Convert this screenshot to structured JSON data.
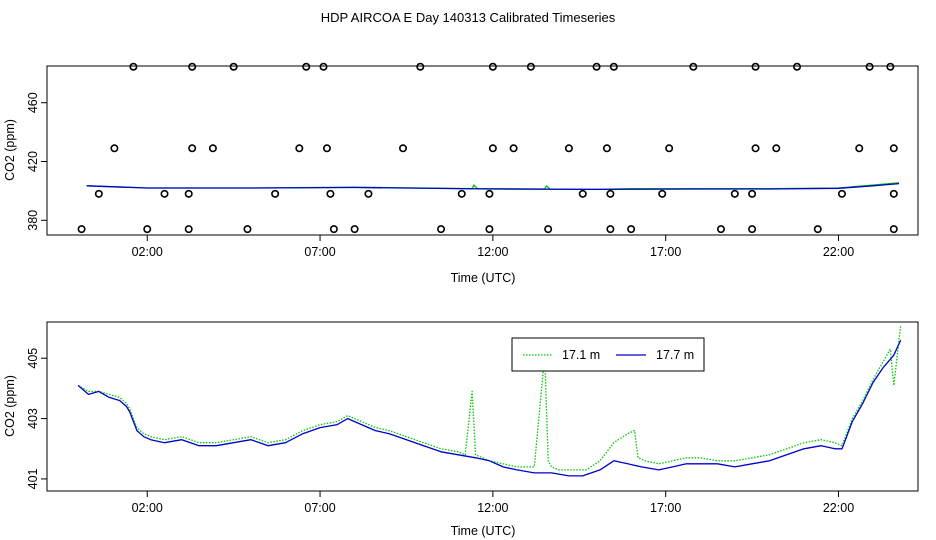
{
  "figure_title": "HDP AIRCOA E  Day 140313  Calibrated Timeseries",
  "colors": {
    "green": "#00c800",
    "blue": "#0000cc",
    "axis": "#000000"
  },
  "chart_data": [
    {
      "type": "line",
      "panel": "top",
      "xlabel": "Time (UTC)",
      "ylabel": "CO2 (ppm)",
      "xlim_hours": [
        0,
        24
      ],
      "ylim": [
        370,
        485
      ],
      "x_ticks": [
        {
          "hour": 2,
          "label": "02:00"
        },
        {
          "hour": 7,
          "label": "07:00"
        },
        {
          "hour": 12,
          "label": "12:00"
        },
        {
          "hour": 17,
          "label": "17:00"
        },
        {
          "hour": 22,
          "label": "22:00"
        }
      ],
      "y_ticks": [
        380,
        420,
        460
      ],
      "series": [
        {
          "color": "green",
          "hours": [
            0.25,
            2,
            5,
            8,
            11.4,
            11.45,
            11.55,
            12,
            13.5,
            13.55,
            13.65,
            15,
            16,
            18,
            20,
            22,
            23,
            23.75
          ],
          "values": [
            403.5,
            402,
            402,
            402.5,
            401.5,
            404,
            401.5,
            401.5,
            401.3,
            403.5,
            401.3,
            401,
            401.5,
            401.5,
            401.5,
            402,
            404,
            405.5
          ]
        },
        {
          "color": "blue",
          "hours": [
            0.25,
            2,
            5,
            8,
            12,
            15,
            18,
            20,
            22,
            23,
            23.75
          ],
          "values": [
            403.5,
            402,
            402,
            402.3,
            401.3,
            401,
            401.3,
            401.3,
            401.8,
            403.5,
            405
          ]
        }
      ],
      "markers": {
        "shape": "open-circle",
        "points": [
          [
            1.6,
            484.5
          ],
          [
            3.3,
            484.5
          ],
          [
            4.5,
            484.5
          ],
          [
            6.6,
            484.5
          ],
          [
            7.1,
            484.5
          ],
          [
            9.9,
            484.5
          ],
          [
            12,
            484.5
          ],
          [
            13.1,
            484.5
          ],
          [
            15,
            484.5
          ],
          [
            15.5,
            484.5
          ],
          [
            17.8,
            484.5
          ],
          [
            19.6,
            484.5
          ],
          [
            20.8,
            484.5
          ],
          [
            22.9,
            484.5
          ],
          [
            23.5,
            484.5
          ],
          [
            1.05,
            429
          ],
          [
            3.3,
            429
          ],
          [
            3.9,
            429
          ],
          [
            6.4,
            429
          ],
          [
            7.2,
            429
          ],
          [
            9.4,
            429
          ],
          [
            12,
            429
          ],
          [
            12.6,
            429
          ],
          [
            14.2,
            429
          ],
          [
            15.3,
            429
          ],
          [
            17.1,
            429
          ],
          [
            19.6,
            429
          ],
          [
            20.2,
            429
          ],
          [
            22.6,
            429
          ],
          [
            23.6,
            429
          ],
          [
            0.6,
            398
          ],
          [
            2.5,
            398
          ],
          [
            3.2,
            398
          ],
          [
            5.7,
            398
          ],
          [
            7.3,
            398
          ],
          [
            8.4,
            398
          ],
          [
            11.1,
            398
          ],
          [
            11.9,
            398
          ],
          [
            14.6,
            398
          ],
          [
            15.4,
            398
          ],
          [
            16.9,
            398
          ],
          [
            19,
            398
          ],
          [
            19.5,
            398
          ],
          [
            22.1,
            398
          ],
          [
            23.6,
            398
          ],
          [
            0.1,
            374
          ],
          [
            2,
            374
          ],
          [
            3.2,
            374
          ],
          [
            4.9,
            374
          ],
          [
            7.4,
            374
          ],
          [
            8,
            374
          ],
          [
            10.5,
            374
          ],
          [
            11.9,
            374
          ],
          [
            13.6,
            374
          ],
          [
            15.4,
            374
          ],
          [
            16,
            374
          ],
          [
            18.6,
            374
          ],
          [
            19.5,
            374
          ],
          [
            21.4,
            374
          ],
          [
            23.6,
            374
          ]
        ]
      }
    },
    {
      "type": "line",
      "panel": "bottom",
      "xlabel": "Time (UTC)",
      "ylabel": "CO2 (ppm)",
      "xlim_hours": [
        -0.9,
        24.3
      ],
      "ylim": [
        400.6,
        406.2
      ],
      "x_ticks": [
        {
          "hour": 2,
          "label": "02:00"
        },
        {
          "hour": 7,
          "label": "07:00"
        },
        {
          "hour": 12,
          "label": "12:00"
        },
        {
          "hour": 17,
          "label": "17:00"
        },
        {
          "hour": 22,
          "label": "22:00"
        }
      ],
      "y_ticks": [
        401,
        403,
        405
      ],
      "legend": {
        "placement": "top-center-right"
      },
      "series": [
        {
          "name": "17.1 m",
          "color": "green",
          "style": "dotted",
          "hours": [
            0,
            0.3,
            0.6,
            0.9,
            1.2,
            1.4,
            1.5,
            1.7,
            1.9,
            2.1,
            2.5,
            3,
            3.5,
            4,
            4.5,
            5,
            5.5,
            6,
            6.5,
            7,
            7.5,
            7.8,
            8.2,
            8.6,
            9,
            9.5,
            10,
            10.5,
            11,
            11.2,
            11.4,
            11.5,
            11.7,
            11.9,
            12.3,
            12.7,
            13.2,
            13.5,
            13.6,
            13.7,
            13.9,
            14.3,
            14.7,
            15.1,
            15.5,
            15.9,
            16.1,
            16.2,
            16.4,
            16.8,
            17.2,
            17.6,
            18,
            18.5,
            19,
            19.5,
            20,
            20.5,
            21,
            21.5,
            21.9,
            22.1,
            22.4,
            22.7,
            23,
            23.3,
            23.5,
            23.6,
            23.8
          ],
          "values": [
            404.1,
            403.9,
            403.9,
            403.8,
            403.7,
            403.5,
            403.3,
            402.7,
            402.5,
            402.4,
            402.3,
            402.4,
            402.2,
            402.2,
            402.3,
            402.4,
            402.2,
            402.3,
            402.6,
            402.8,
            402.9,
            403.1,
            402.9,
            402.7,
            402.6,
            402.4,
            402.2,
            402,
            401.9,
            401.8,
            403.9,
            401.8,
            401.7,
            401.6,
            401.5,
            401.4,
            401.4,
            405.1,
            401.6,
            401.4,
            401.3,
            401.3,
            401.3,
            401.6,
            402.2,
            402.5,
            402.6,
            401.7,
            401.6,
            401.5,
            401.6,
            401.7,
            401.7,
            401.6,
            401.6,
            401.7,
            401.8,
            402,
            402.2,
            402.3,
            402.2,
            402.1,
            403,
            403.6,
            404.3,
            404.9,
            405.3,
            404.1,
            406.1
          ]
        },
        {
          "name": "17.7 m",
          "color": "blue",
          "style": "solid",
          "hours": [
            0,
            0.3,
            0.6,
            0.9,
            1.2,
            1.4,
            1.5,
            1.7,
            1.9,
            2.1,
            2.5,
            3,
            3.5,
            4,
            4.5,
            5,
            5.5,
            6,
            6.5,
            7,
            7.5,
            7.8,
            8.2,
            8.6,
            9,
            9.5,
            10,
            10.5,
            11,
            11.5,
            11.9,
            12.3,
            12.7,
            13.2,
            13.7,
            14.2,
            14.6,
            15.1,
            15.5,
            15.9,
            16.3,
            16.8,
            17.2,
            17.6,
            18,
            18.5,
            19,
            19.5,
            20,
            20.5,
            21,
            21.5,
            21.9,
            22.1,
            22.4,
            22.7,
            23,
            23.3,
            23.6,
            23.8
          ],
          "values": [
            404.1,
            403.8,
            403.9,
            403.7,
            403.6,
            403.4,
            403.2,
            402.6,
            402.4,
            402.3,
            402.2,
            402.3,
            402.1,
            402.1,
            402.2,
            402.3,
            402.1,
            402.2,
            402.5,
            402.7,
            402.8,
            403,
            402.8,
            402.6,
            402.5,
            402.3,
            402.1,
            401.9,
            401.8,
            401.7,
            401.6,
            401.4,
            401.3,
            401.2,
            401.2,
            401.1,
            401.1,
            401.3,
            401.6,
            401.5,
            401.4,
            401.3,
            401.4,
            401.5,
            401.5,
            401.5,
            401.4,
            401.5,
            401.6,
            401.8,
            402,
            402.1,
            402,
            402,
            402.9,
            403.5,
            404.2,
            404.7,
            405.1,
            405.6
          ]
        }
      ]
    }
  ]
}
